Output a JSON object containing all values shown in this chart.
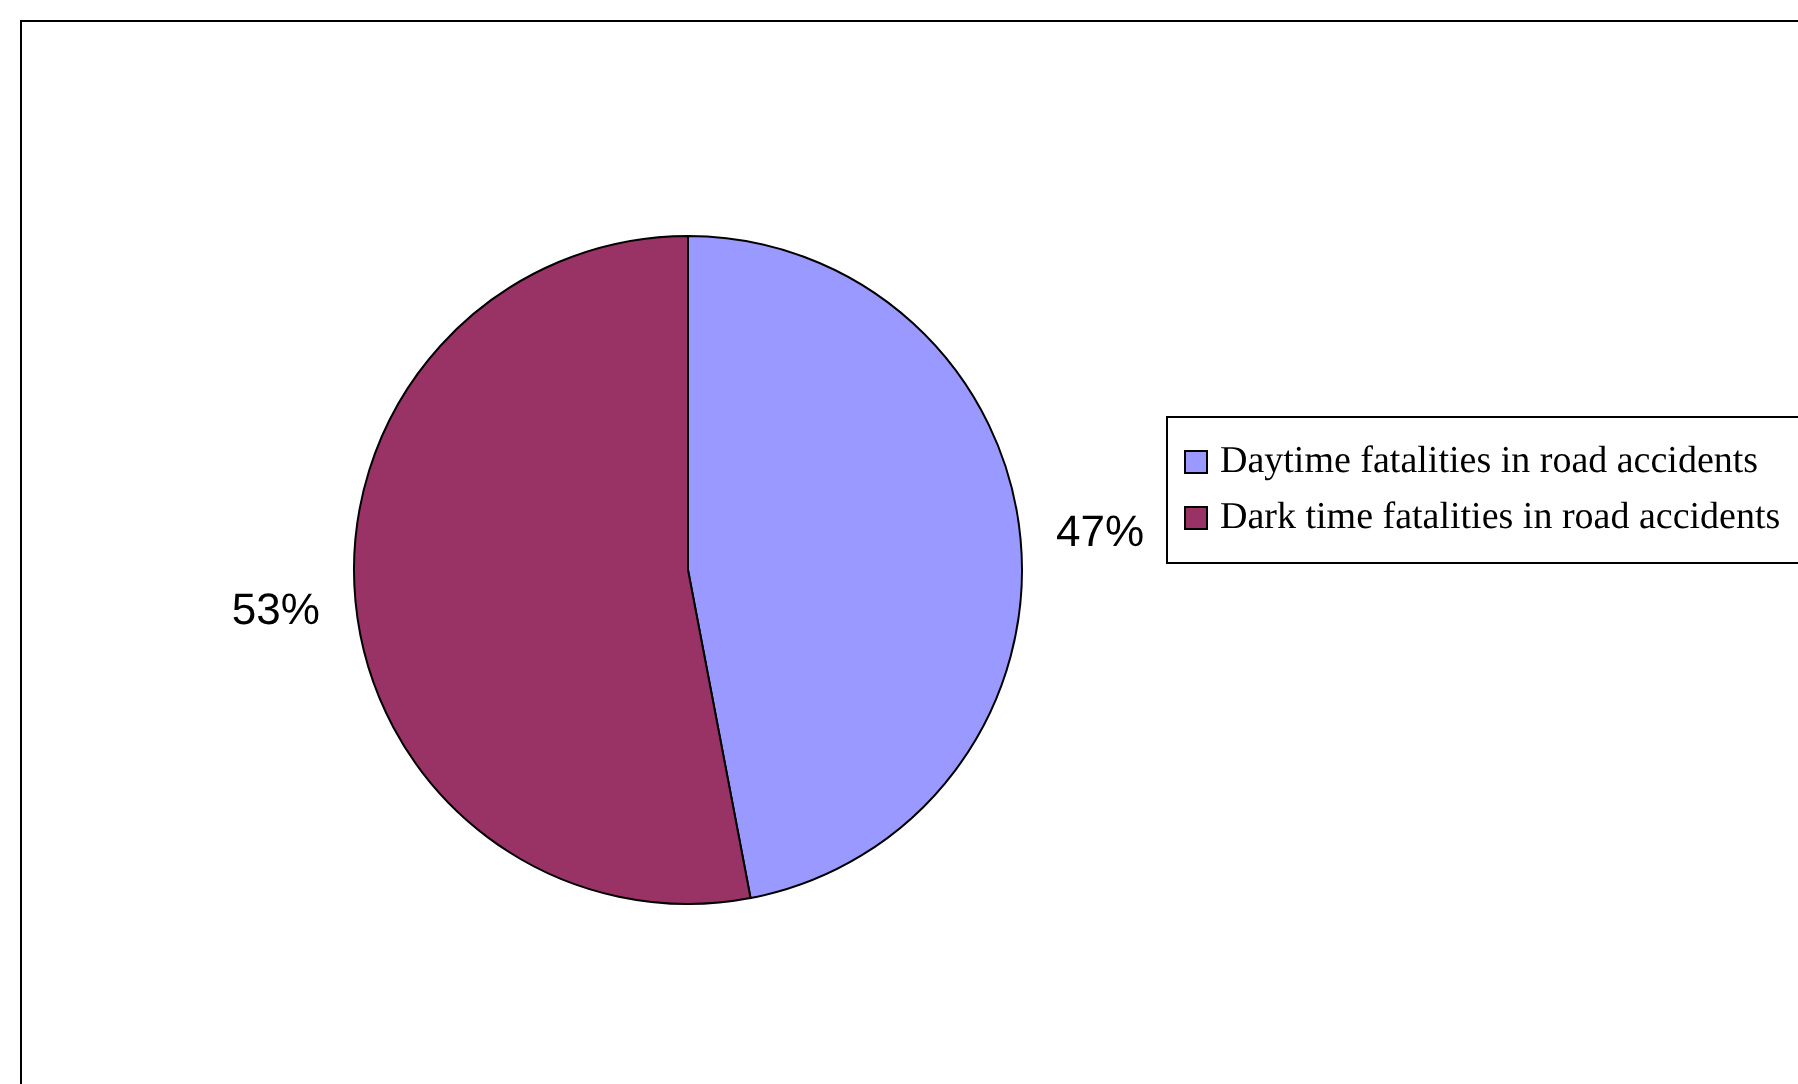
{
  "chart_data": {
    "type": "pie",
    "categories": [
      "Daytime fatalities in road accidents",
      "Dark time fatalities in road accidents"
    ],
    "values": [
      47,
      53
    ],
    "colors": [
      "#9999ff",
      "#993366"
    ],
    "value_labels": [
      "47%",
      "53%"
    ],
    "legend": "right"
  }
}
